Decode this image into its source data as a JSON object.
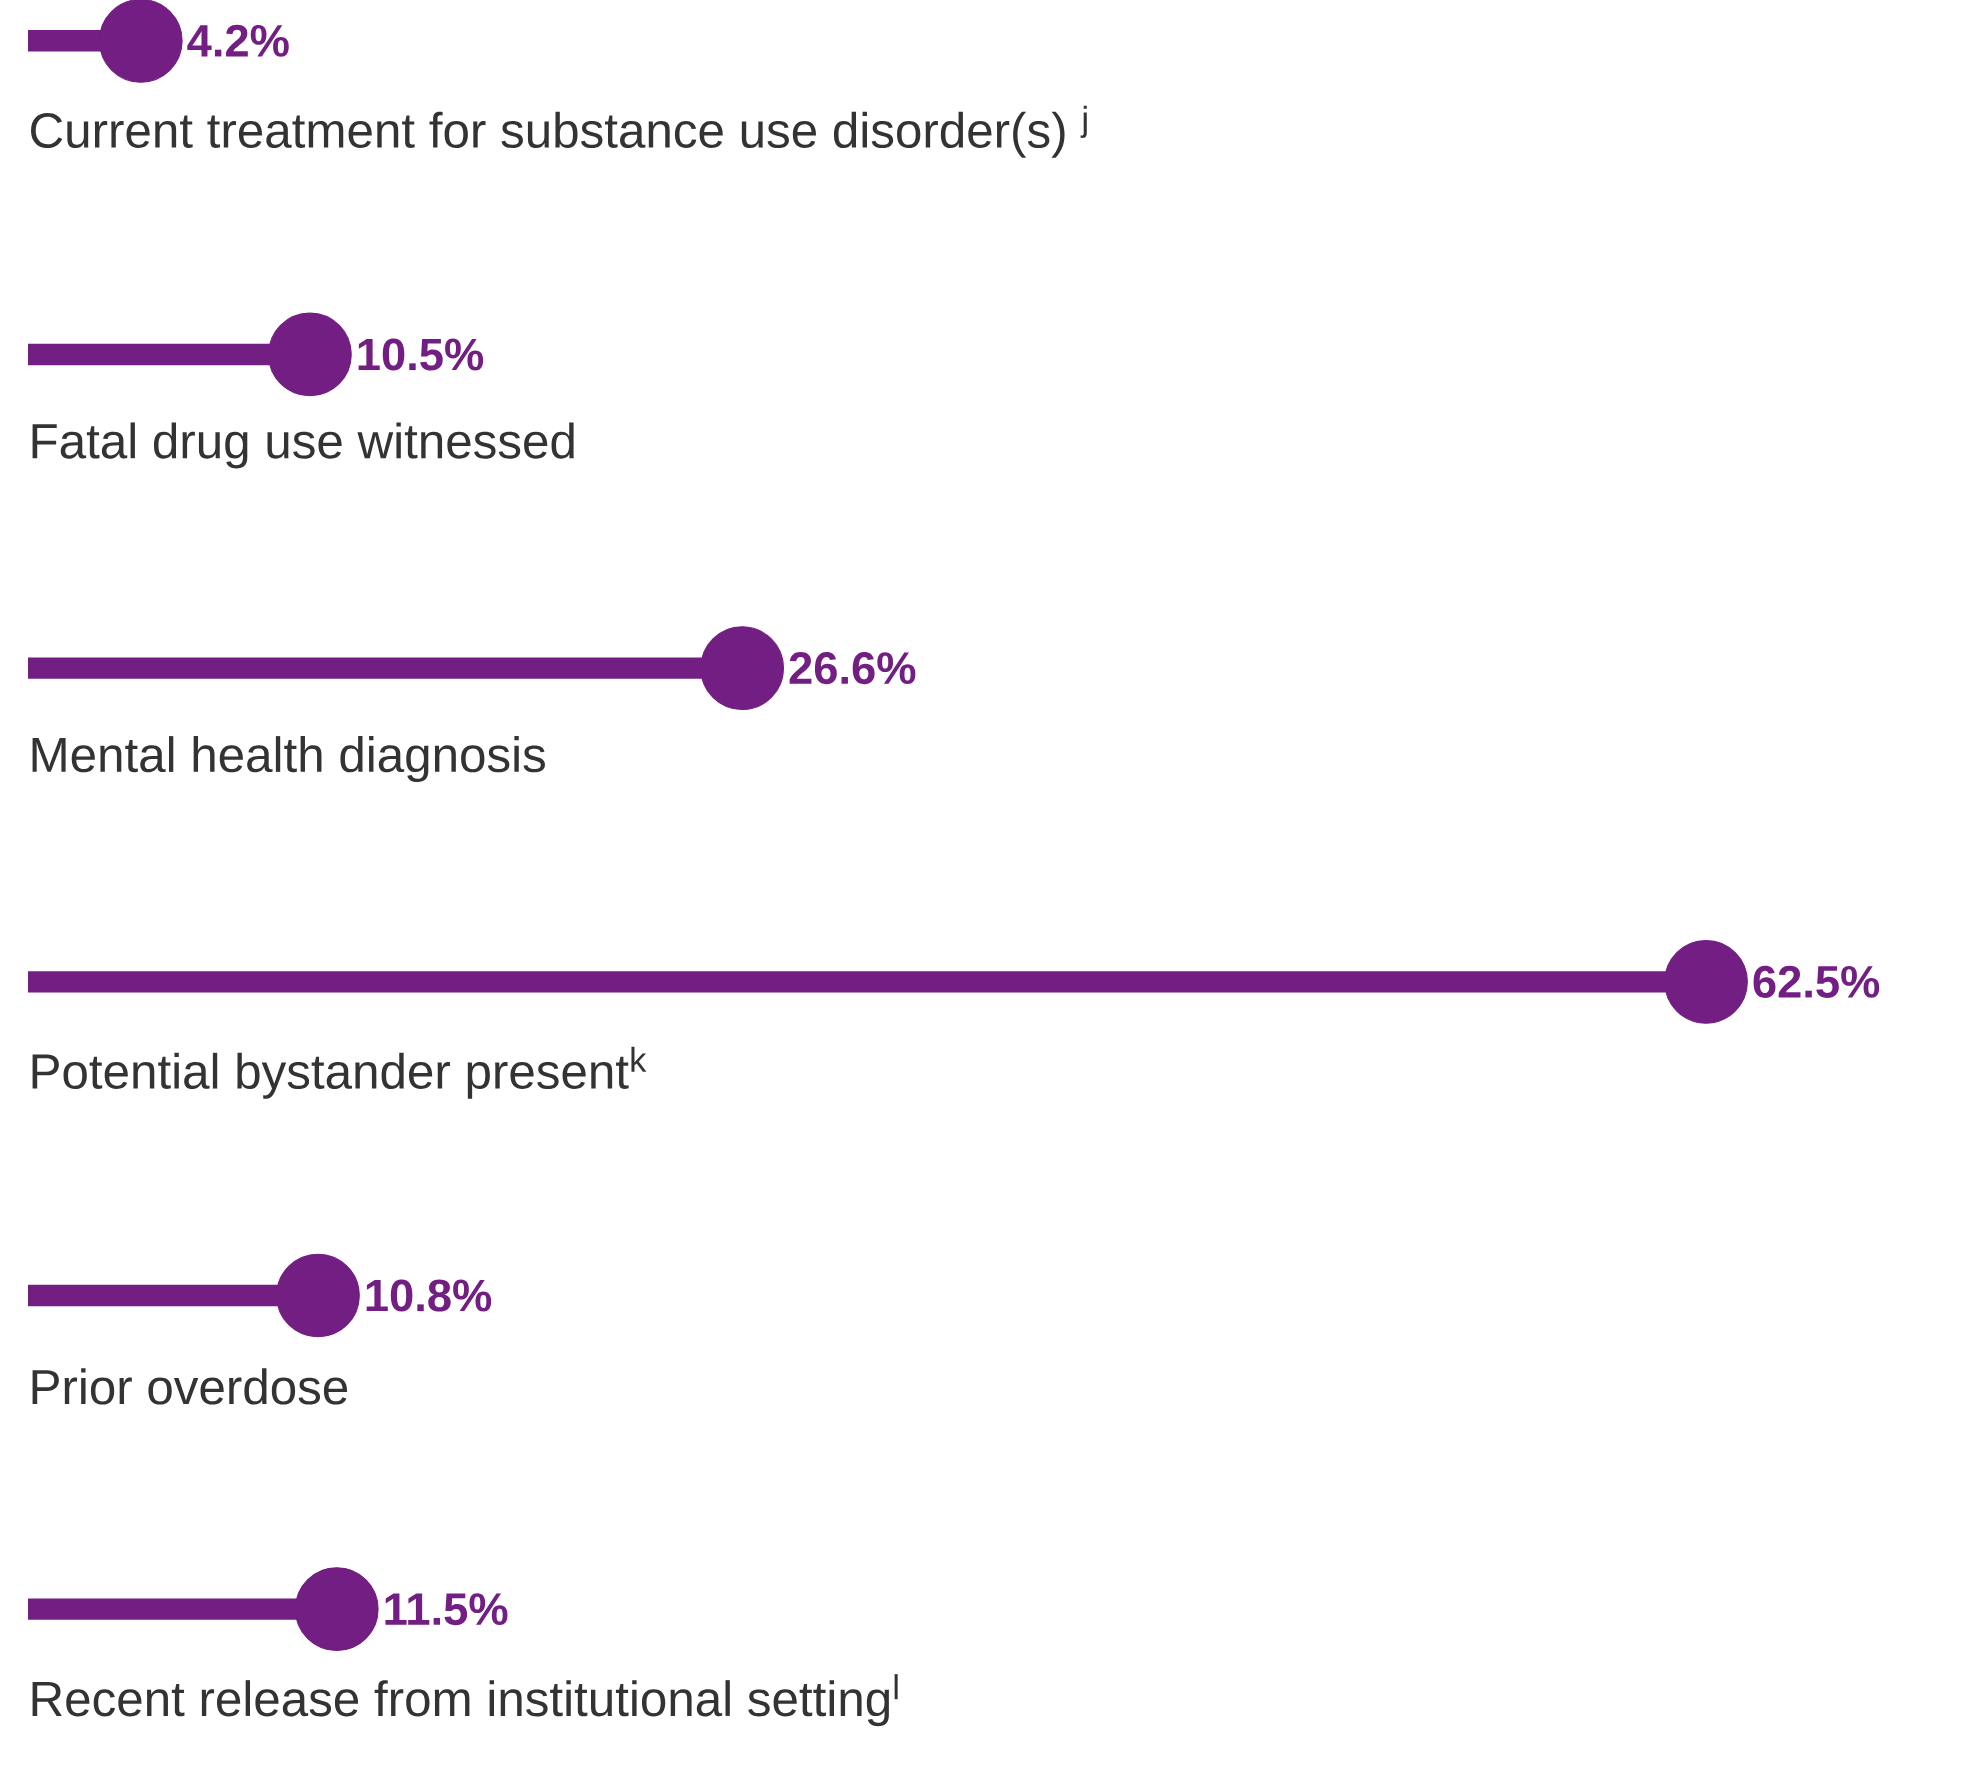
{
  "chart_data": {
    "type": "lollipop",
    "orientation": "horizontal",
    "marker": "circle",
    "color": "#731e82",
    "categories": [
      "Current treatment for substance use disorder(s) $^{j}$",
      "Fatal drug use witnessed",
      "Mental health diagnosis",
      "Potential bystander present$^{k}$",
      "Prior overdose",
      "Recent release from institutional setting$^{l}$"
    ],
    "values": [
      4.2,
      10.5,
      26.6,
      62.5,
      10.8,
      11.5
    ],
    "value_labels": [
      "4.2%",
      "10.5%",
      "26.6%",
      "62.5%",
      "10.8%",
      "11.5%"
    ]
  }
}
